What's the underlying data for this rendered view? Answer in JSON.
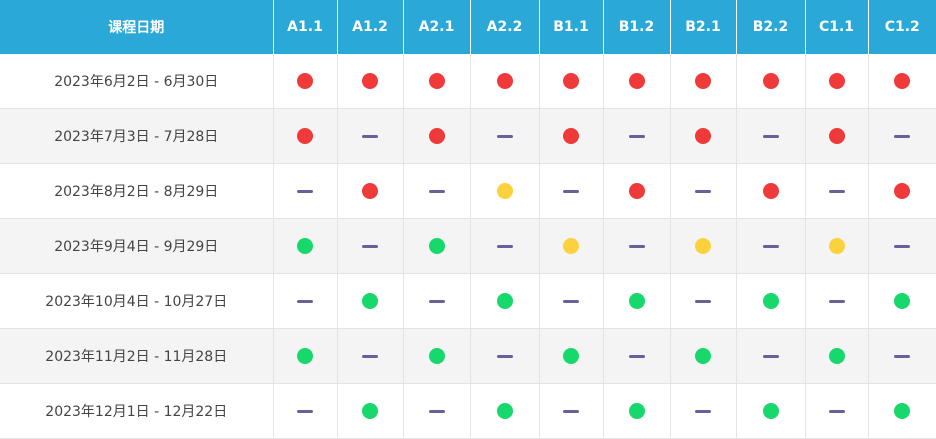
{
  "table": {
    "date_header": "课程日期",
    "levels": [
      "A1.1",
      "A1.2",
      "A2.1",
      "A2.2",
      "B1.1",
      "B1.2",
      "B2.1",
      "B2.2",
      "C1.1",
      "C1.2"
    ],
    "rows": [
      {
        "date": "2023年6月2日 - 6月30日",
        "cells": [
          "red",
          "red",
          "red",
          "red",
          "red",
          "red",
          "red",
          "red",
          "red",
          "red"
        ]
      },
      {
        "date": "2023年7月3日 - 7月28日",
        "cells": [
          "red",
          "none",
          "red",
          "none",
          "red",
          "none",
          "red",
          "none",
          "red",
          "none"
        ]
      },
      {
        "date": "2023年8月2日 - 8月29日",
        "cells": [
          "none",
          "red",
          "none",
          "yellow",
          "none",
          "red",
          "none",
          "red",
          "none",
          "red"
        ]
      },
      {
        "date": "2023年9月4日 - 9月29日",
        "cells": [
          "green",
          "none",
          "green",
          "none",
          "yellow",
          "none",
          "yellow",
          "none",
          "yellow",
          "none"
        ]
      },
      {
        "date": "2023年10月4日 - 10月27日",
        "cells": [
          "none",
          "green",
          "none",
          "green",
          "none",
          "green",
          "none",
          "green",
          "none",
          "green"
        ]
      },
      {
        "date": "2023年11月2日 - 11月28日",
        "cells": [
          "green",
          "none",
          "green",
          "none",
          "green",
          "none",
          "green",
          "none",
          "green",
          "none"
        ]
      },
      {
        "date": "2023年12月1日 - 12月22日",
        "cells": [
          "none",
          "green",
          "none",
          "green",
          "none",
          "green",
          "none",
          "green",
          "none",
          "green"
        ]
      }
    ]
  },
  "colors": {
    "header_bg": "#2aa8d8",
    "red": "#f03a3a",
    "yellow": "#fbd23e",
    "green": "#17d86a",
    "dash": "#6b5f99"
  }
}
